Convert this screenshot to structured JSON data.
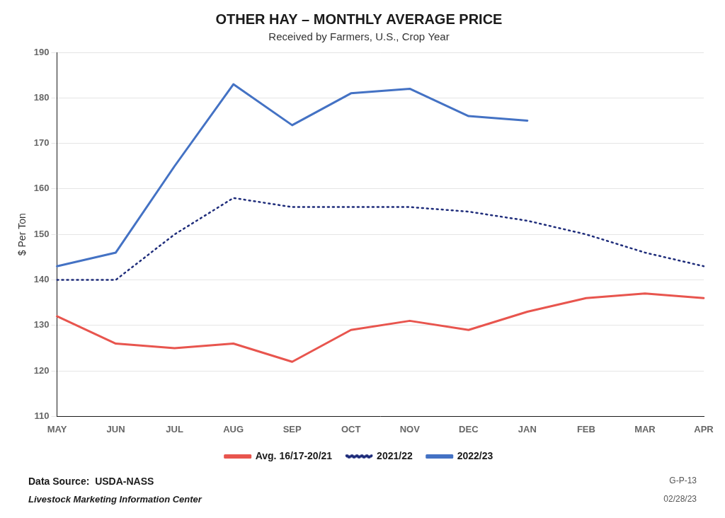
{
  "chart_data": {
    "type": "line",
    "title": "OTHER HAY – MONTHLY AVERAGE PRICE",
    "subtitle": "Received by Farmers, U.S., Crop Year",
    "y_label": "$ Per Ton",
    "categories": [
      "MAY",
      "JUN",
      "JUL",
      "AUG",
      "SEP",
      "OCT",
      "NOV",
      "DEC",
      "JAN",
      "FEB",
      "MAR",
      "APR"
    ],
    "series": [
      {
        "name": "Avg. 16/17-20/21",
        "color": "#E8554E",
        "line_style": "solid",
        "values": [
          132,
          126,
          125,
          126,
          122,
          129,
          131,
          129,
          133,
          136,
          137,
          136
        ]
      },
      {
        "name": "2021/22",
        "color": "#1F2D7B",
        "line_style": "dotted",
        "values": [
          140,
          140,
          150,
          158,
          156,
          156,
          156,
          155,
          153,
          150,
          146,
          143
        ]
      },
      {
        "name": "2022/23",
        "color": "#4472C4",
        "line_style": "solid",
        "values": [
          143,
          146,
          165,
          183,
          174,
          181,
          182,
          176,
          175,
          null,
          null,
          null
        ]
      }
    ],
    "ylim": [
      110,
      190
    ],
    "yticks": [
      110,
      120,
      130,
      140,
      150,
      160,
      170,
      180,
      190
    ],
    "grid": true,
    "legend": "bottom",
    "annotations": [
      "Data Source:  USDA-NASS",
      "Livestock Marketing Information Center",
      "G-P-13",
      "02/28/23"
    ]
  }
}
